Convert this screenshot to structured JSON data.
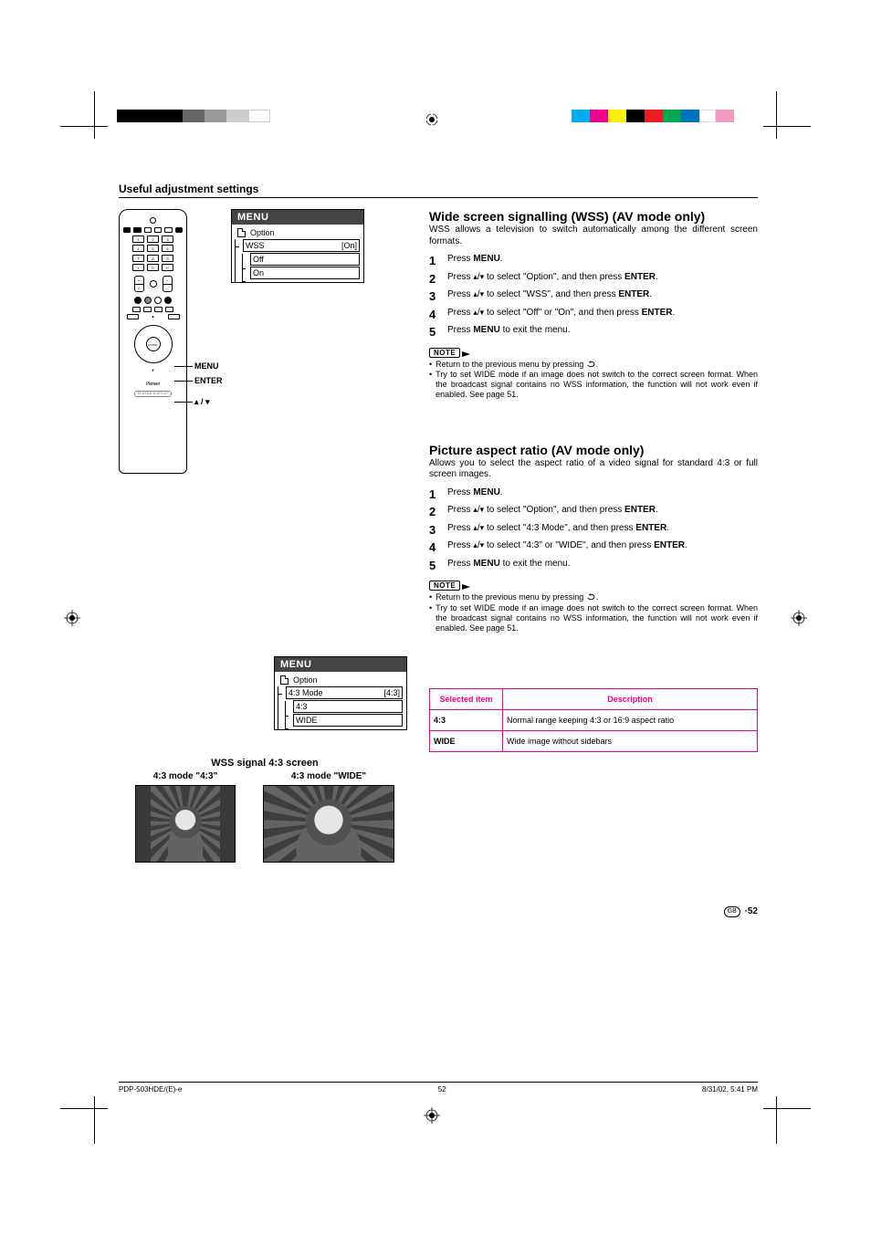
{
  "header": {
    "title": "Useful adjustment settings"
  },
  "remote_labels": {
    "menu": "MENU",
    "enter": "ENTER",
    "arrows": "▴ / ▾"
  },
  "osd_wss": {
    "title": "MENU",
    "crumb": "Option",
    "row_label": "WSS",
    "row_value": "[On]",
    "opt1": "Off",
    "opt2": "On"
  },
  "osd_43": {
    "title": "MENU",
    "crumb": "Option",
    "row_label": "4:3 Mode",
    "row_value": "[4:3]",
    "opt1": "4:3",
    "opt2": "WIDE"
  },
  "topic_wss": {
    "heading": "Wide screen signalling (WSS) (AV mode only)",
    "lead": "WSS allows a television to switch automatically among the different screen formats.",
    "steps": [
      {
        "n": "1",
        "html": "Press <b>MENU</b>."
      },
      {
        "n": "2",
        "html": "Press <span class='arr-up'></span>/<span class='arr-dn'></span> to select \"Option\", and then press <b>ENTER</b>."
      },
      {
        "n": "3",
        "html": "Press <span class='arr-up'></span>/<span class='arr-dn'></span> to select \"WSS\", and then press <b>ENTER</b>."
      },
      {
        "n": "4",
        "html": "Press <span class='arr-up'></span>/<span class='arr-dn'></span> to select \"Off\" or \"On\", and then press <b>ENTER</b>."
      },
      {
        "n": "5",
        "html": "Press <b>MENU</b> to exit the menu."
      }
    ],
    "notes": [
      "Return to the previous menu by pressing <span class='return-icon'><svg viewBox='0 0 12 8'><path d='M5 1 A4 3 0 1 1 2 5' fill='none' stroke='#000' stroke-width='1'/><path d='M5 0 L3 2 L6 2.5 Z' fill='#000'/></svg></span>.",
      "Try to set WIDE mode if an image does not switch to the correct screen format. When the broadcast signal contains no WSS information, the function will not work even if enabled. See page 51."
    ]
  },
  "topic_aspect": {
    "heading": "Picture aspect ratio (AV mode only)",
    "lead": "Allows you to select the aspect ratio of a video signal for standard 4:3 or full screen images.",
    "steps": [
      {
        "n": "1",
        "html": "Press <b>MENU</b>."
      },
      {
        "n": "2",
        "html": "Press <span class='arr-up'></span>/<span class='arr-dn'></span> to select \"Option\", and then press <b>ENTER</b>."
      },
      {
        "n": "3",
        "html": "Press <span class='arr-up'></span>/<span class='arr-dn'></span> to select \"4:3 Mode\", and then press <b>ENTER</b>."
      },
      {
        "n": "4",
        "html": "Press <span class='arr-up'></span>/<span class='arr-dn'></span> to select \"4:3\" or \"WIDE\", and then press <b>ENTER</b>."
      },
      {
        "n": "5",
        "html": "Press <b>MENU</b> to exit the menu."
      }
    ],
    "notes": [
      "Return to the previous menu by pressing <span class='return-icon'><svg viewBox='0 0 12 8'><path d='M5 1 A4 3 0 1 1 2 5' fill='none' stroke='#000' stroke-width='1'/><path d='M5 0 L3 2 L6 2.5 Z' fill='#000'/></svg></span>.",
      "Try to set WIDE mode if an image does not switch to the correct screen format. When the broadcast signal contains no WSS information, the function will not work even if enabled. See page 51."
    ]
  },
  "desc_table": {
    "th1": "Selected item",
    "th2": "Description",
    "rows": [
      {
        "k": "4:3",
        "v": "Normal range keeping 4:3 or 16:9 aspect ratio"
      },
      {
        "k": "WIDE",
        "v": "Wide image without sidebars"
      }
    ],
    "border_color": "#ec008c"
  },
  "wss_signal": {
    "title": "WSS signal 4:3 screen",
    "cap1": "4:3 mode \"4:3\"",
    "cap2": "4:3 mode \"WIDE\""
  },
  "page_num": {
    "region": "GB",
    "num": "52"
  },
  "footer": {
    "left": "PDP-503HDE/(E)-e",
    "mid": "52",
    "right": "8/31/02, 5:41 PM"
  },
  "colorbar_left": [
    "#000000",
    "#000000",
    "#000000",
    "#666666",
    "#999999",
    "#cccccc",
    "#ffffff"
  ],
  "colorbar_right": [
    "#00aeef",
    "#ec008c",
    "#fff200",
    "#000000",
    "#ed1c24",
    "#00a651",
    "#0072bc",
    "#f7941d",
    "#ffffff",
    "#f49ac1"
  ],
  "note_label": "NOTE"
}
